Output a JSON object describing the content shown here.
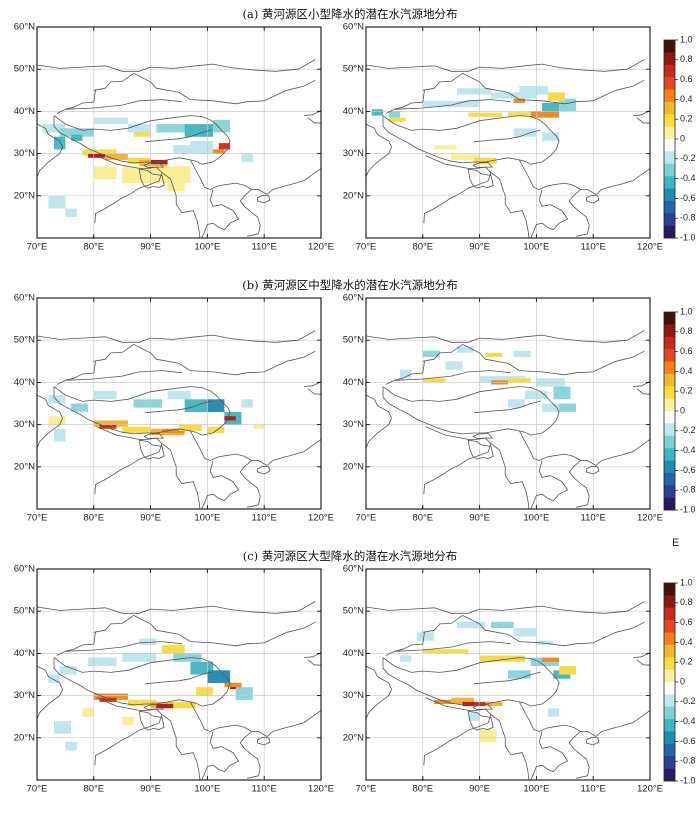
{
  "rows": [
    {
      "title": "(a) 黄河源区小型降水的潜在水汽源地分布"
    },
    {
      "title": "(b) 黄河源区中型降水的潜在水汽源地分布"
    },
    {
      "title": "(c) 黄河源区大型降水的潜在水汽源地分布"
    }
  ],
  "lon_ticks": [
    "70°E",
    "80°E",
    "90°E",
    "100°E",
    "110°E",
    "120°E"
  ],
  "lat_ticks": [
    "60°N",
    "50°N",
    "40°N",
    "30°N",
    "20°N"
  ],
  "colorbar": {
    "ticks": [
      "1.0",
      "0.8",
      "0.6",
      "0.4",
      "0.2",
      "0",
      "-0.2",
      "-0.4",
      "-0.6",
      "-0.8",
      "-1.0"
    ],
    "colors": [
      "#4a1009",
      "#8c1a10",
      "#c62a1f",
      "#e5471e",
      "#f57f1a",
      "#f7b52a",
      "#f8dd3c",
      "#fbf3a0",
      "#ffffff",
      "#bfe6ec",
      "#7fd1d9",
      "#3cb7c2",
      "#1f8db0",
      "#2566a6",
      "#2b3f94",
      "#2a1b5f"
    ],
    "unit": "E"
  },
  "map_extent": {
    "lon": [
      70,
      120
    ],
    "lat": [
      10,
      60
    ]
  }
}
